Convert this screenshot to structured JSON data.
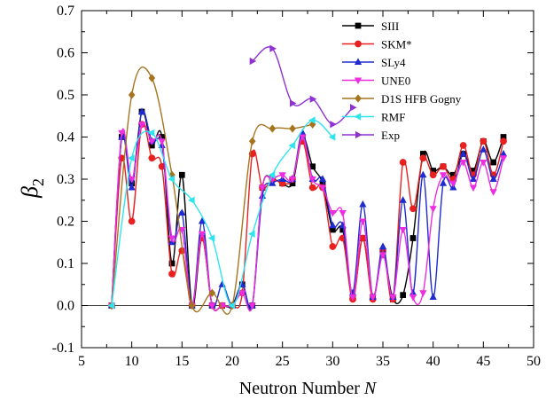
{
  "chart_data": {
    "type": "line",
    "title": "",
    "xlabel": "Neutron Number",
    "xlabel_var": "N",
    "ylabel": "β",
    "ylabel_sub": "2",
    "xlim": [
      5,
      50
    ],
    "ylim": [
      -0.1,
      0.7
    ],
    "x_ticks": [
      5,
      10,
      15,
      20,
      25,
      30,
      35,
      40,
      45,
      50
    ],
    "y_ticks": [
      -0.1,
      0.0,
      0.1,
      0.2,
      0.3,
      0.4,
      0.5,
      0.6,
      0.7
    ],
    "y_tick_labels": [
      "-0.1",
      "0.0",
      "0.1",
      "0.2",
      "0.3",
      "0.4",
      "0.5",
      "0.6",
      "0.7"
    ],
    "x_tick_labels": [
      "5",
      "10",
      "15",
      "20",
      "25",
      "30",
      "35",
      "40",
      "45",
      "50"
    ],
    "reference_line_y": 0,
    "legend_position": "top-right",
    "series": [
      {
        "name": "SIII",
        "color": "#000000",
        "marker": "square",
        "x": [
          8,
          9,
          10,
          11,
          12,
          13,
          14,
          15,
          16,
          17,
          18,
          19,
          20,
          21,
          22,
          23,
          24,
          25,
          26,
          27,
          28,
          29,
          30,
          31,
          32,
          33,
          34,
          35,
          36,
          37,
          38,
          39,
          40,
          41,
          42,
          43,
          44,
          45,
          46,
          47
        ],
        "y": [
          0,
          0.4,
          0.29,
          0.46,
          0.38,
          0.4,
          0.1,
          0.31,
          0,
          0.16,
          0,
          0,
          0,
          0.05,
          0,
          0.28,
          0.3,
          0.29,
          0.29,
          0.4,
          0.33,
          0.29,
          0.18,
          0.18,
          0.02,
          0.16,
          0.02,
          0.12,
          0.015,
          0.025,
          0.16,
          0.36,
          0.32,
          0.33,
          0.31,
          0.36,
          0.32,
          0.39,
          0.34,
          0.4
        ]
      },
      {
        "name": "SKM*",
        "color": "#e8201f",
        "marker": "circle",
        "x": [
          8,
          9,
          10,
          11,
          12,
          13,
          14,
          15,
          16,
          17,
          18,
          19,
          20,
          21,
          22,
          23,
          24,
          25,
          26,
          27,
          28,
          29,
          30,
          31,
          32,
          33,
          34,
          35,
          36,
          37,
          38,
          39,
          40,
          41,
          42,
          43,
          44,
          45,
          46,
          47
        ],
        "y": [
          0,
          0.35,
          0.2,
          0.43,
          0.35,
          0.33,
          0.075,
          0.13,
          0,
          0.16,
          0,
          0,
          0,
          0.03,
          0.36,
          0.28,
          0.3,
          0.29,
          0.3,
          0.39,
          0.28,
          0.28,
          0.14,
          0.16,
          0.015,
          0.16,
          0.015,
          0.13,
          0.015,
          0.34,
          0.23,
          0.35,
          0.31,
          0.33,
          0.3,
          0.38,
          0.31,
          0.39,
          0.31,
          0.39
        ]
      },
      {
        "name": "SLy4",
        "color": "#1f2ad0",
        "marker": "triangle-up",
        "x": [
          8,
          9,
          10,
          11,
          12,
          13,
          14,
          15,
          16,
          17,
          18,
          19,
          20,
          21,
          22,
          23,
          24,
          25,
          26,
          27,
          28,
          29,
          30,
          31,
          32,
          33,
          34,
          35,
          36,
          37,
          38,
          39,
          40,
          41,
          42,
          43,
          44,
          45,
          46,
          47
        ],
        "y": [
          0,
          0.4,
          0.28,
          0.46,
          0.39,
          0.38,
          0.15,
          0.22,
          0,
          0.2,
          0,
          0.05,
          0,
          0.05,
          0,
          0.26,
          0.29,
          0.3,
          0.3,
          0.41,
          0.3,
          0.3,
          0.19,
          0.19,
          0.03,
          0.24,
          0.02,
          0.14,
          0.02,
          0.25,
          0.03,
          0.31,
          0.02,
          0.29,
          0.28,
          0.36,
          0.3,
          0.37,
          0.3,
          0.36
        ]
      },
      {
        "name": "UNE0",
        "color": "#ee2de0",
        "marker": "triangle-down",
        "x": [
          8,
          9,
          10,
          11,
          12,
          13,
          14,
          15,
          16,
          17,
          18,
          19,
          20,
          21,
          22,
          23,
          24,
          25,
          26,
          27,
          28,
          29,
          30,
          31,
          32,
          33,
          34,
          35,
          36,
          37,
          38,
          39,
          40,
          41,
          42,
          43,
          44,
          45,
          46,
          47
        ],
        "y": [
          0,
          0.41,
          0.3,
          0.43,
          0.39,
          0.39,
          0.16,
          0.18,
          0,
          0.17,
          0,
          0,
          0,
          0.03,
          0,
          0.28,
          0.3,
          0.31,
          0.3,
          0.4,
          0.3,
          0.28,
          0.22,
          0.22,
          0.02,
          0.2,
          0.02,
          0.12,
          0.02,
          0.18,
          0.02,
          0.03,
          0.23,
          0.31,
          0.29,
          0.34,
          0.28,
          0.34,
          0.27,
          0.35
        ]
      },
      {
        "name": "D1S HFB Gogny",
        "color": "#a6741f",
        "marker": "diamond",
        "x": [
          8,
          10,
          12,
          14,
          16,
          18,
          20,
          22,
          24,
          26,
          28
        ],
        "y": [
          0,
          0.5,
          0.54,
          0.31,
          0,
          0.03,
          0,
          0.39,
          0.42,
          0.42,
          0.43
        ]
      },
      {
        "name": "RMF",
        "color": "#2ee4ee",
        "marker": "triangle-left",
        "x": [
          8,
          10,
          12,
          14,
          16,
          18,
          20,
          22,
          24,
          26,
          28,
          30
        ],
        "y": [
          0,
          0.35,
          0.41,
          0.3,
          0.25,
          0.16,
          0,
          0.17,
          0.31,
          0.38,
          0.44,
          0.4
        ]
      },
      {
        "name": "Exp",
        "color": "#8f31d3",
        "marker": "triangle-right",
        "x": [
          22,
          24,
          26,
          28,
          30,
          32
        ],
        "y": [
          0.58,
          0.61,
          0.48,
          0.49,
          0.43,
          0.47
        ]
      }
    ]
  }
}
